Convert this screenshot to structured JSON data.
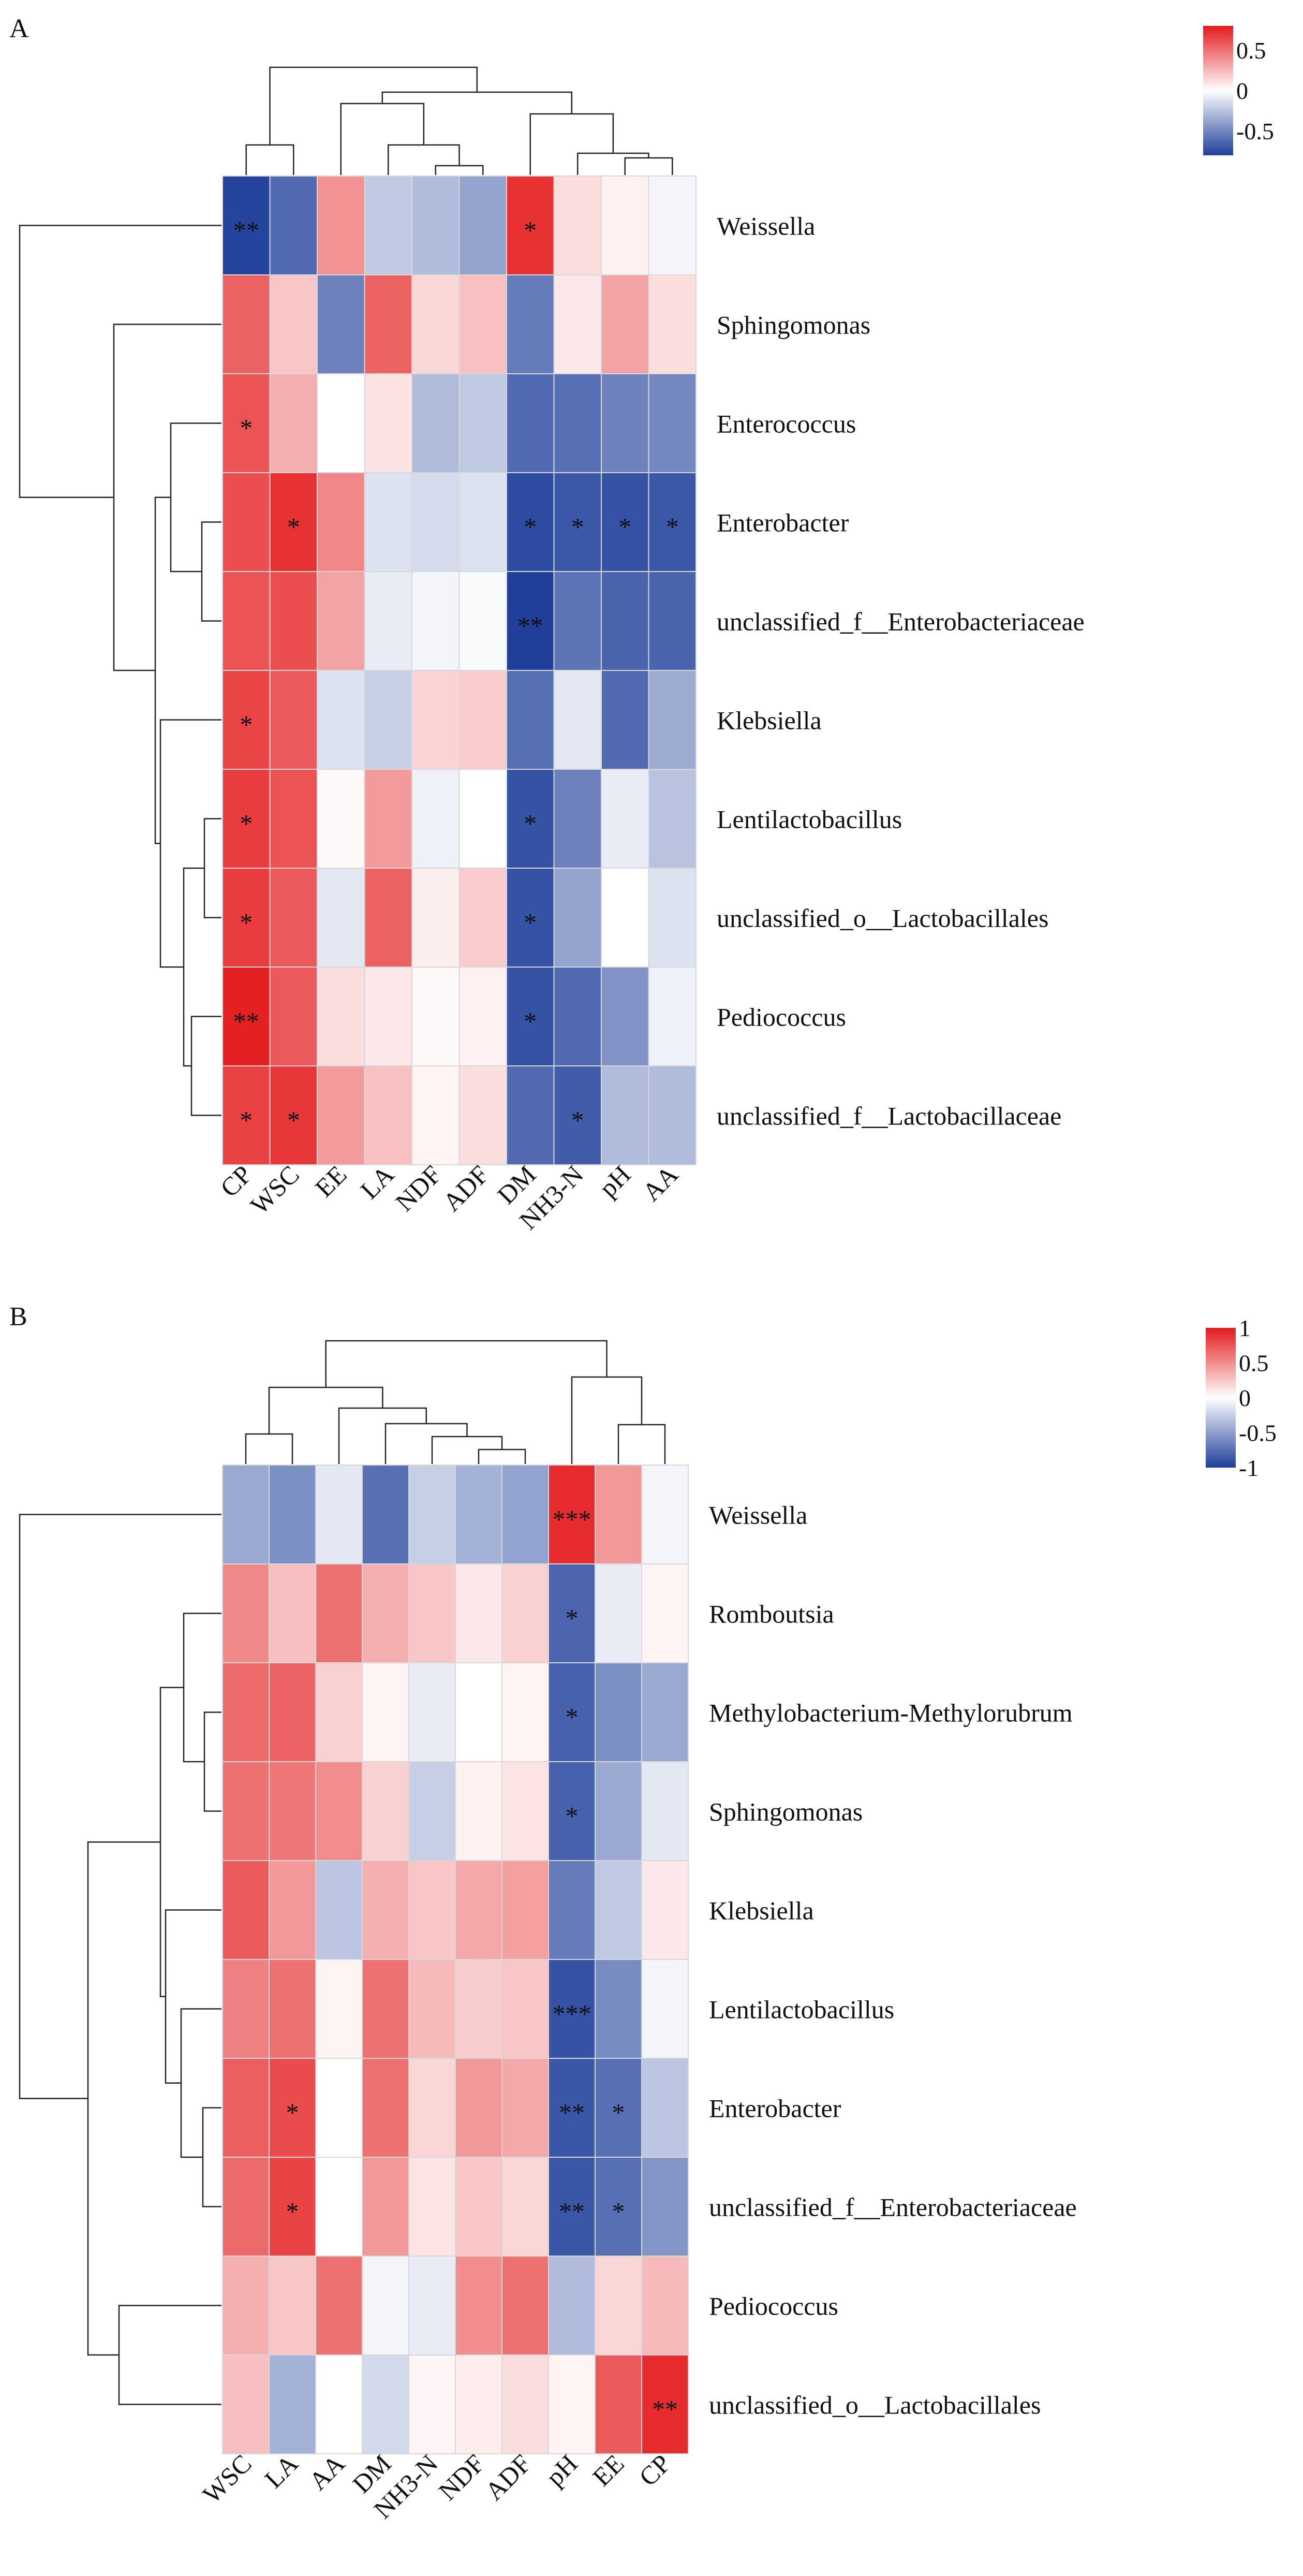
{
  "chart_data": [
    {
      "type": "heatmap",
      "panel_label": "A",
      "columns": [
        "CP",
        "WSC",
        "EE",
        "LA",
        "NDF",
        "ADF",
        "DM",
        "NH3-N",
        "pH",
        "AA"
      ],
      "rows": [
        "Weissella",
        "Sphingomonas",
        "Enterococcus",
        "Enterobacter",
        "unclassified_f__Enterobacteriaceae",
        "Klebsiella",
        "Lentilactobacillus",
        "unclassified_o__Lactobacillales",
        "Pediococcus",
        "unclassified_f__Lactobacillaceae"
      ],
      "values": [
        [
          -0.78,
          -0.62,
          0.38,
          -0.22,
          -0.28,
          -0.38,
          0.72,
          0.12,
          0.05,
          -0.04
        ],
        [
          0.55,
          0.2,
          -0.52,
          0.55,
          0.14,
          0.22,
          -0.55,
          0.08,
          0.32,
          0.12
        ],
        [
          0.6,
          0.28,
          0.0,
          0.1,
          -0.28,
          -0.22,
          -0.62,
          -0.6,
          -0.52,
          -0.5
        ],
        [
          0.62,
          0.72,
          0.42,
          -0.12,
          -0.15,
          -0.12,
          -0.75,
          -0.7,
          -0.72,
          -0.7
        ],
        [
          0.6,
          0.62,
          0.32,
          -0.08,
          -0.04,
          -0.02,
          -0.82,
          -0.58,
          -0.65,
          -0.65
        ],
        [
          0.65,
          0.58,
          -0.12,
          -0.2,
          0.15,
          0.18,
          -0.6,
          -0.1,
          -0.62,
          -0.35
        ],
        [
          0.68,
          0.6,
          0.02,
          0.35,
          -0.06,
          0.0,
          -0.72,
          -0.52,
          -0.08,
          -0.25
        ],
        [
          0.68,
          0.58,
          -0.1,
          0.55,
          0.06,
          0.18,
          -0.72,
          -0.38,
          0.0,
          -0.12
        ],
        [
          0.78,
          0.58,
          0.12,
          0.08,
          0.02,
          0.05,
          -0.72,
          -0.62,
          -0.45,
          -0.06
        ],
        [
          0.66,
          0.7,
          0.35,
          0.22,
          0.04,
          0.12,
          -0.62,
          -0.68,
          -0.28,
          -0.28
        ]
      ],
      "stars": [
        [
          "**",
          "",
          "",
          "",
          "",
          "",
          "*",
          "",
          "",
          ""
        ],
        [
          "",
          "",
          "",
          "",
          "",
          "",
          "",
          "",
          "",
          ""
        ],
        [
          "*",
          "",
          "",
          "",
          "",
          "",
          "",
          "",
          "",
          ""
        ],
        [
          "",
          "*",
          "",
          "",
          "",
          "",
          "*",
          "*",
          "*",
          "*"
        ],
        [
          "",
          "",
          "",
          "",
          "",
          "",
          "**",
          "",
          "",
          ""
        ],
        [
          "*",
          "",
          "",
          "",
          "",
          "",
          "",
          "",
          "",
          ""
        ],
        [
          "*",
          "",
          "",
          "",
          "",
          "",
          "*",
          "",
          "",
          ""
        ],
        [
          "*",
          "",
          "",
          "",
          "",
          "",
          "*",
          "",
          "",
          ""
        ],
        [
          "**",
          "",
          "",
          "",
          "",
          "",
          "*",
          "",
          "",
          ""
        ],
        [
          "*",
          "*",
          "",
          "",
          "",
          "",
          "",
          "*",
          "",
          ""
        ]
      ],
      "legend": {
        "ticks": [
          0.5,
          0,
          -0.5
        ],
        "tick_labels": [
          "0.5",
          "0",
          "-0.5"
        ],
        "range": [
          -0.8,
          0.8
        ],
        "placement": "top-right"
      },
      "colors": {
        "high": "#e41a1c",
        "mid": "#ffffff",
        "low": "#1f3f9a"
      }
    },
    {
      "type": "heatmap",
      "panel_label": "B",
      "columns": [
        "WSC",
        "LA",
        "AA",
        "DM",
        "NH3-N",
        "NDF",
        "ADF",
        "pH",
        "EE",
        "CP"
      ],
      "rows": [
        "Weissella",
        "Romboutsia",
        "Methylobacterium-Methylorubrum",
        "Sphingomonas",
        "Klebsiella",
        "Lentilactobacillus",
        "Enterobacter",
        "unclassified_f__Enterobacteriaceae",
        "Pediococcus",
        "unclassified_o__Lactobacillales"
      ],
      "values": [
        [
          -0.45,
          -0.58,
          -0.12,
          -0.75,
          -0.25,
          -0.4,
          -0.48,
          0.92,
          0.45,
          -0.05
        ],
        [
          0.52,
          0.28,
          0.62,
          0.35,
          0.25,
          0.1,
          0.2,
          -0.8,
          -0.1,
          0.05
        ],
        [
          0.65,
          0.68,
          0.2,
          0.05,
          -0.1,
          0.0,
          0.05,
          -0.82,
          -0.58,
          -0.45
        ],
        [
          0.62,
          0.6,
          0.5,
          0.2,
          -0.25,
          0.06,
          0.12,
          -0.82,
          -0.45,
          -0.12
        ],
        [
          0.72,
          0.45,
          -0.3,
          0.35,
          0.25,
          0.38,
          0.42,
          -0.68,
          -0.28,
          0.1
        ],
        [
          0.55,
          0.62,
          0.05,
          0.62,
          0.3,
          0.22,
          0.25,
          -0.9,
          -0.6,
          -0.05
        ],
        [
          0.7,
          0.78,
          0.0,
          0.62,
          0.18,
          0.45,
          0.38,
          -0.88,
          -0.75,
          -0.3
        ],
        [
          0.65,
          0.82,
          0.0,
          0.45,
          0.12,
          0.25,
          0.18,
          -0.88,
          -0.75,
          -0.55
        ],
        [
          0.35,
          0.25,
          0.62,
          -0.05,
          -0.1,
          0.5,
          0.62,
          -0.35,
          0.18,
          0.3
        ],
        [
          0.28,
          -0.4,
          0.0,
          -0.2,
          0.04,
          0.08,
          0.15,
          0.05,
          0.72,
          0.92
        ]
      ],
      "stars": [
        [
          "",
          "",
          "",
          "",
          "",
          "",
          "",
          "***",
          "",
          ""
        ],
        [
          "",
          "",
          "",
          "",
          "",
          "",
          "",
          "*",
          "",
          ""
        ],
        [
          "",
          "",
          "",
          "",
          "",
          "",
          "",
          "*",
          "",
          ""
        ],
        [
          "",
          "",
          "",
          "",
          "",
          "",
          "",
          "*",
          "",
          ""
        ],
        [
          "",
          "",
          "",
          "",
          "",
          "",
          "",
          "",
          "",
          ""
        ],
        [
          "",
          "",
          "",
          "",
          "",
          "",
          "",
          "***",
          "",
          ""
        ],
        [
          "",
          "*",
          "",
          "",
          "",
          "",
          "",
          "**",
          "*",
          ""
        ],
        [
          "",
          "*",
          "",
          "",
          "",
          "",
          "",
          "**",
          "*",
          ""
        ],
        [
          "",
          "",
          "",
          "",
          "",
          "",
          "",
          "",
          "",
          ""
        ],
        [
          "",
          "",
          "",
          "",
          "",
          "",
          "",
          "",
          "",
          "**"
        ]
      ],
      "legend": {
        "ticks": [
          1,
          0.5,
          0,
          -0.5,
          -1
        ],
        "tick_labels": [
          "1",
          "0.5",
          "0",
          "-0.5",
          "-1"
        ],
        "range": [
          -1,
          1
        ],
        "placement": "top-right"
      },
      "colors": {
        "high": "#e41a1c",
        "mid": "#ffffff",
        "low": "#1f3f9a"
      }
    }
  ]
}
